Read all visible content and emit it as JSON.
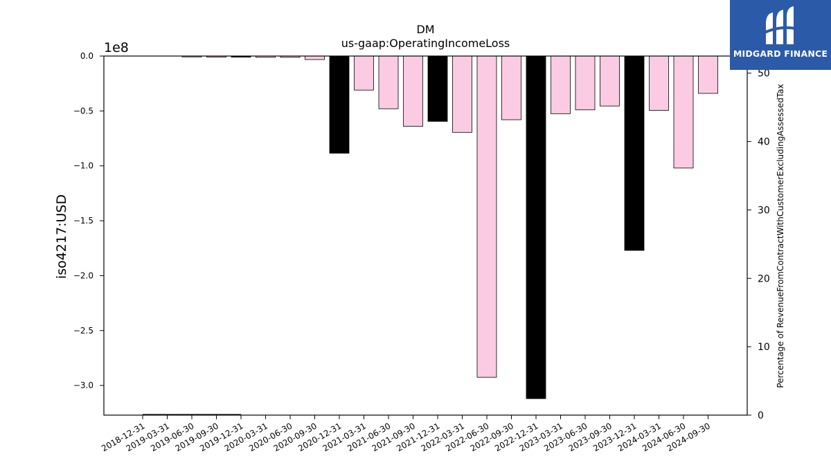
{
  "chart_data": {
    "type": "bar",
    "title": "DM",
    "subtitle": "us-gaap:OperatingIncomeLoss",
    "ylabel": "iso4217:USD",
    "y_offset_label": "1e8",
    "y2label": "Percentage of RevenueFromContractWithCustomerExcludingAssessedTax",
    "ylim": [
      -3.27,
      0
    ],
    "y2lim": [
      0,
      52.5
    ],
    "yticks": [
      "0.0",
      "−0.5",
      "−1.0",
      "−1.5",
      "−2.0",
      "−2.5",
      "−3.0"
    ],
    "y2ticks": [
      "0",
      "10",
      "20",
      "30",
      "40",
      "50"
    ],
    "categories": [
      "2018-12-31",
      "2019-03-31",
      "2019-06-30",
      "2019-09-30",
      "2019-12-31",
      "2020-03-31",
      "2020-06-30",
      "2020-09-30",
      "2020-12-31",
      "2021-03-31",
      "2021-06-30",
      "2021-09-30",
      "2021-12-31",
      "2022-03-31",
      "2022-06-30",
      "2022-09-30",
      "2022-12-31",
      "2023-03-31",
      "2023-06-30",
      "2023-09-30",
      "2023-12-31",
      "2024-03-31",
      "2024-06-30",
      "2024-09-30"
    ],
    "values": [
      null,
      null,
      -0.008,
      -0.01,
      -0.01,
      -0.012,
      -0.012,
      -0.032,
      -0.885,
      -0.31,
      -0.48,
      -0.64,
      -0.595,
      -0.695,
      -2.925,
      -0.58,
      -3.12,
      -0.525,
      -0.49,
      -0.455,
      -1.77,
      -0.495,
      -1.02,
      -0.34
    ],
    "bar_colors": [
      "#fbcbe4",
      "#fbcbe4",
      "#fbcbe4",
      "#fbcbe4",
      "#000000",
      "#fbcbe4",
      "#fbcbe4",
      "#fbcbe4",
      "#000000",
      "#fbcbe4",
      "#fbcbe4",
      "#fbcbe4",
      "#000000",
      "#fbcbe4",
      "#fbcbe4",
      "#fbcbe4",
      "#000000",
      "#fbcbe4",
      "#fbcbe4",
      "#fbcbe4",
      "#000000",
      "#fbcbe4",
      "#fbcbe4",
      "#fbcbe4"
    ],
    "secondary_line": {
      "x_from": "2018-12-31",
      "x_to": "2019-12-31",
      "value": 0.05
    }
  },
  "logo": {
    "text": "MIDGARD FINANCE",
    "icon": "midgard-logo-icon",
    "background": "#2b5aa8"
  }
}
